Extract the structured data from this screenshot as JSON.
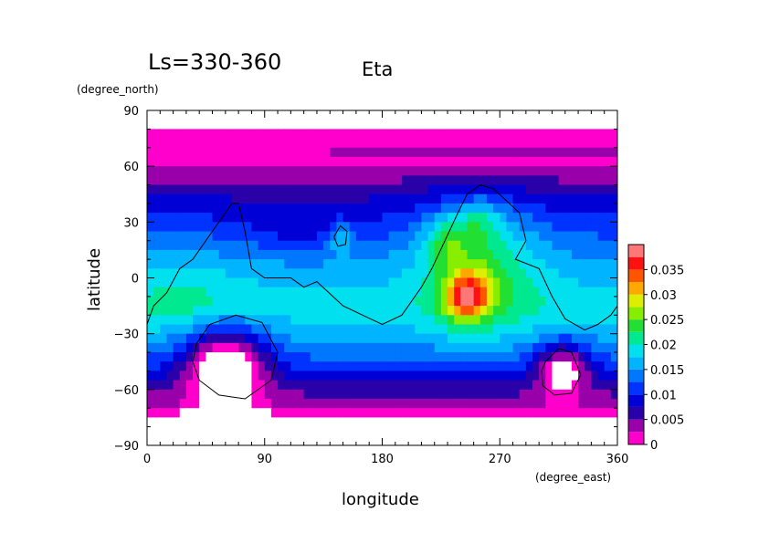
{
  "chart_data": {
    "type": "heatmap",
    "title": "Eta",
    "subtitle": "Ls=330-360",
    "xlabel": "longitude",
    "ylabel": "latitude",
    "x_unit": "(degree_east)",
    "y_unit": "(degree_north)",
    "xlim": [
      0,
      360
    ],
    "ylim": [
      -90,
      90
    ],
    "x_ticks": [
      "0",
      "90",
      "180",
      "270",
      "360"
    ],
    "y_ticks": [
      "90",
      "60",
      "30",
      "0",
      "−30",
      "−60",
      "−90"
    ],
    "x_tick_values": [
      0,
      90,
      180,
      270,
      360
    ],
    "y_tick_values": [
      90,
      60,
      30,
      0,
      -30,
      -60,
      -90
    ],
    "colorbar": {
      "levels": [
        0,
        0.0025,
        0.005,
        0.0075,
        0.01,
        0.0125,
        0.015,
        0.0175,
        0.02,
        0.0225,
        0.025,
        0.0275,
        0.03,
        0.0325,
        0.035,
        0.0375
      ],
      "labels": [
        "0",
        "0.005",
        "0.01",
        "0.015",
        "0.02",
        "0.025",
        "0.03",
        "0.035"
      ],
      "label_values": [
        0,
        0.005,
        0.01,
        0.015,
        0.02,
        0.025,
        0.03,
        0.035
      ],
      "colors": [
        "#ff00cc",
        "#9900aa",
        "#2a00a8",
        "#0000d6",
        "#0033ff",
        "#0077ff",
        "#00b4ff",
        "#00e0ee",
        "#00e890",
        "#22e033",
        "#88ee00",
        "#ddee00",
        "#ffa800",
        "#ff5500",
        "#ff1111",
        "#ff7777",
        "#ffbbbb"
      ]
    },
    "field": {
      "zonal_bands": [
        {
          "lat": 85,
          "value": 0.0001
        },
        {
          "lat": 75,
          "value": 0.001
        },
        {
          "lat": 70,
          "value": 0.0035
        },
        {
          "lat": 65,
          "value": 0.0015
        },
        {
          "lat": 55,
          "value": 0.004
        },
        {
          "lat": 45,
          "value": 0.007
        },
        {
          "lat": 35,
          "value": 0.0095
        },
        {
          "lat": 20,
          "value": 0.013
        },
        {
          "lat": 5,
          "value": 0.016
        },
        {
          "lat": -15,
          "value": 0.019
        },
        {
          "lat": -30,
          "value": 0.0165
        },
        {
          "lat": -45,
          "value": 0.012
        },
        {
          "lat": -55,
          "value": 0.008
        },
        {
          "lat": -63,
          "value": 0.005
        },
        {
          "lat": -68,
          "value": 0.0035
        },
        {
          "lat": -73,
          "value": 0.001
        },
        {
          "lat": -80,
          "value": 0.0001
        },
        {
          "lat": -90,
          "value": 0.0001
        }
      ],
      "anomalies": [
        {
          "lon": 245,
          "lat": -10,
          "amp": 0.016,
          "sigma_lon": 12,
          "sigma_lat": 9
        },
        {
          "lon": 255,
          "lat": 10,
          "amp": 0.008,
          "sigma_lon": 30,
          "sigma_lat": 25
        },
        {
          "lon": 230,
          "lat": 20,
          "amp": 0.006,
          "sigma_lon": 12,
          "sigma_lat": 10
        },
        {
          "lon": 255,
          "lat": 30,
          "amp": 0.005,
          "sigma_lon": 12,
          "sigma_lat": 8
        },
        {
          "lon": 148,
          "lat": 22,
          "amp": 0.007,
          "sigma_lon": 6,
          "sigma_lat": 6
        },
        {
          "lon": 60,
          "lat": -45,
          "amp": -0.016,
          "sigma_lon": 22,
          "sigma_lat": 14
        },
        {
          "lon": 318,
          "lat": -48,
          "amp": -0.012,
          "sigma_lon": 14,
          "sigma_lat": 10
        },
        {
          "lon": 120,
          "lat": 25,
          "amp": -0.003,
          "sigma_lon": 30,
          "sigma_lat": 10
        },
        {
          "lon": 30,
          "lat": -10,
          "amp": 0.003,
          "sigma_lon": 30,
          "sigma_lat": 15
        }
      ]
    },
    "contours": [
      {
        "name": "topography-outline-1",
        "points": [
          [
            0,
            -25
          ],
          [
            5,
            -15
          ],
          [
            15,
            -8
          ],
          [
            25,
            5
          ],
          [
            35,
            10
          ],
          [
            45,
            20
          ],
          [
            55,
            30
          ],
          [
            65,
            40
          ],
          [
            70,
            40
          ],
          [
            75,
            25
          ],
          [
            80,
            5
          ],
          [
            90,
            0
          ],
          [
            110,
            0
          ],
          [
            120,
            -5
          ],
          [
            130,
            -2
          ],
          [
            150,
            -15
          ],
          [
            165,
            -20
          ],
          [
            180,
            -25
          ],
          [
            195,
            -20
          ],
          [
            205,
            -10
          ],
          [
            210,
            -5
          ],
          [
            218,
            5
          ],
          [
            228,
            20
          ],
          [
            238,
            35
          ],
          [
            245,
            45
          ],
          [
            255,
            50
          ],
          [
            265,
            48
          ],
          [
            285,
            35
          ],
          [
            290,
            20
          ],
          [
            282,
            10
          ],
          [
            300,
            5
          ],
          [
            310,
            -10
          ],
          [
            320,
            -22
          ],
          [
            335,
            -28
          ],
          [
            345,
            -25
          ],
          [
            355,
            -20
          ],
          [
            360,
            -15
          ]
        ]
      },
      {
        "name": "hellas-outline",
        "points": [
          [
            38,
            -35
          ],
          [
            48,
            -25
          ],
          [
            68,
            -20
          ],
          [
            88,
            -24
          ],
          [
            100,
            -40
          ],
          [
            95,
            -55
          ],
          [
            75,
            -65
          ],
          [
            55,
            -63
          ],
          [
            40,
            -55
          ],
          [
            35,
            -45
          ],
          [
            38,
            -35
          ]
        ]
      },
      {
        "name": "argyre-outline",
        "points": [
          [
            305,
            -45
          ],
          [
            315,
            -38
          ],
          [
            325,
            -40
          ],
          [
            332,
            -52
          ],
          [
            325,
            -62
          ],
          [
            312,
            -63
          ],
          [
            303,
            -58
          ],
          [
            302,
            -50
          ],
          [
            305,
            -45
          ]
        ]
      },
      {
        "name": "elysium-outline",
        "points": [
          [
            143,
            22
          ],
          [
            148,
            28
          ],
          [
            153,
            25
          ],
          [
            152,
            18
          ],
          [
            146,
            17
          ],
          [
            143,
            22
          ]
        ]
      }
    ]
  }
}
